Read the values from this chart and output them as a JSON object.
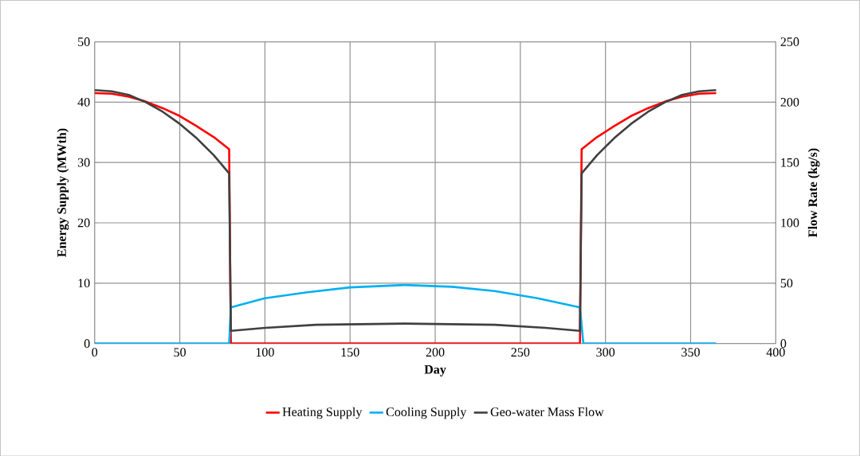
{
  "chart_data": {
    "type": "line",
    "xlabel": "Day",
    "ylabel": "Energy Supply (MWth)",
    "y2label": "Flow Rate (kg/s)",
    "xlim": [
      0,
      400
    ],
    "xticks": [
      0,
      50,
      100,
      150,
      200,
      250,
      300,
      350,
      400
    ],
    "ylim": [
      0,
      50
    ],
    "yticks": [
      0,
      10,
      20,
      30,
      40,
      50
    ],
    "y2lim": [
      0,
      250
    ],
    "y2ticks": [
      0,
      50,
      100,
      150,
      200,
      250
    ],
    "grid": true,
    "legend": "bottom",
    "marker": "none",
    "line_style": "solid",
    "series": [
      {
        "name": "Heating Supply",
        "color": "#ff0000",
        "x": [
          0,
          10,
          20,
          30,
          40,
          50,
          60,
          70,
          79,
          80,
          285,
          286,
          295,
          305,
          315,
          325,
          335,
          345,
          355,
          365
        ],
        "values": [
          41.5,
          41.4,
          40.9,
          40.1,
          39.0,
          37.7,
          36.0,
          34.2,
          32.2,
          0,
          0,
          32.2,
          34.2,
          36.0,
          37.7,
          39.0,
          40.1,
          40.9,
          41.4,
          41.5
        ]
      },
      {
        "name": "Cooling Supply",
        "color": "#00b0f0",
        "x": [
          0,
          79,
          80,
          100,
          125,
          150,
          182,
          210,
          235,
          260,
          285,
          287,
          365
        ],
        "values": [
          0,
          0,
          6.0,
          7.5,
          8.5,
          9.3,
          9.7,
          9.4,
          8.7,
          7.5,
          6.0,
          0,
          0
        ]
      },
      {
        "name": "Geo-water Mass Flow",
        "color": "#404040",
        "axis": "y2",
        "x": [
          0,
          10,
          20,
          30,
          40,
          50,
          60,
          70,
          79,
          80,
          100,
          130,
          182,
          235,
          265,
          285,
          286,
          295,
          305,
          315,
          325,
          335,
          345,
          355,
          365
        ],
        "values": [
          210,
          209,
          206,
          200,
          192,
          182,
          170,
          156,
          141,
          10.5,
          13,
          15.5,
          16.5,
          15.5,
          13,
          10.5,
          141,
          156,
          170,
          182,
          192,
          200,
          206,
          209,
          210
        ]
      }
    ]
  }
}
